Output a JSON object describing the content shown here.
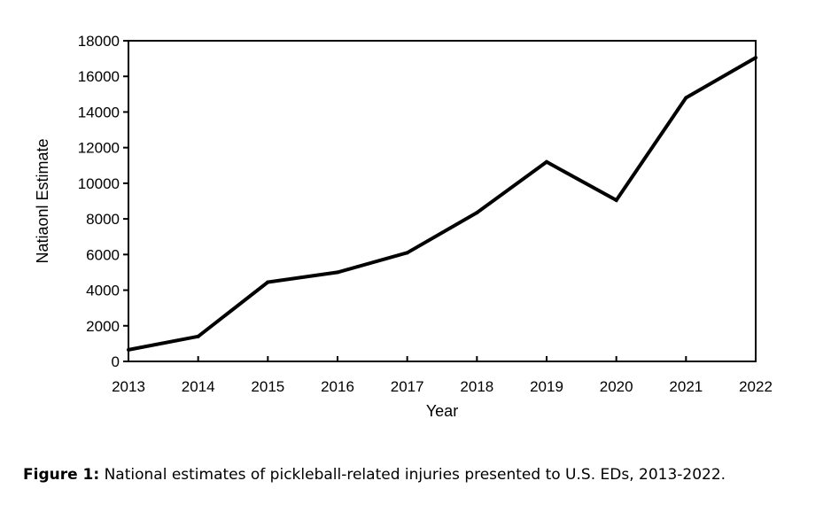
{
  "chart_data": {
    "type": "line",
    "x": [
      "2013",
      "2014",
      "2015",
      "2016",
      "2017",
      "2018",
      "2019",
      "2020",
      "2021",
      "2022"
    ],
    "series": [
      {
        "values": [
          650,
          1400,
          4450,
          5000,
          6100,
          8350,
          11200,
          9050,
          14800,
          17050
        ]
      }
    ],
    "xlabel": "Year",
    "ylabel": "Natiaonl Estimate",
    "ylim": [
      0,
      18000
    ],
    "yticks": [
      0,
      2000,
      4000,
      6000,
      8000,
      10000,
      12000,
      14000,
      16000,
      18000
    ],
    "grid": false,
    "line_color": "#000000"
  },
  "caption": {
    "label": "Figure 1:",
    "text": " National estimates of pickleball-related injuries presented to U.S. EDs, 2013-2022."
  }
}
